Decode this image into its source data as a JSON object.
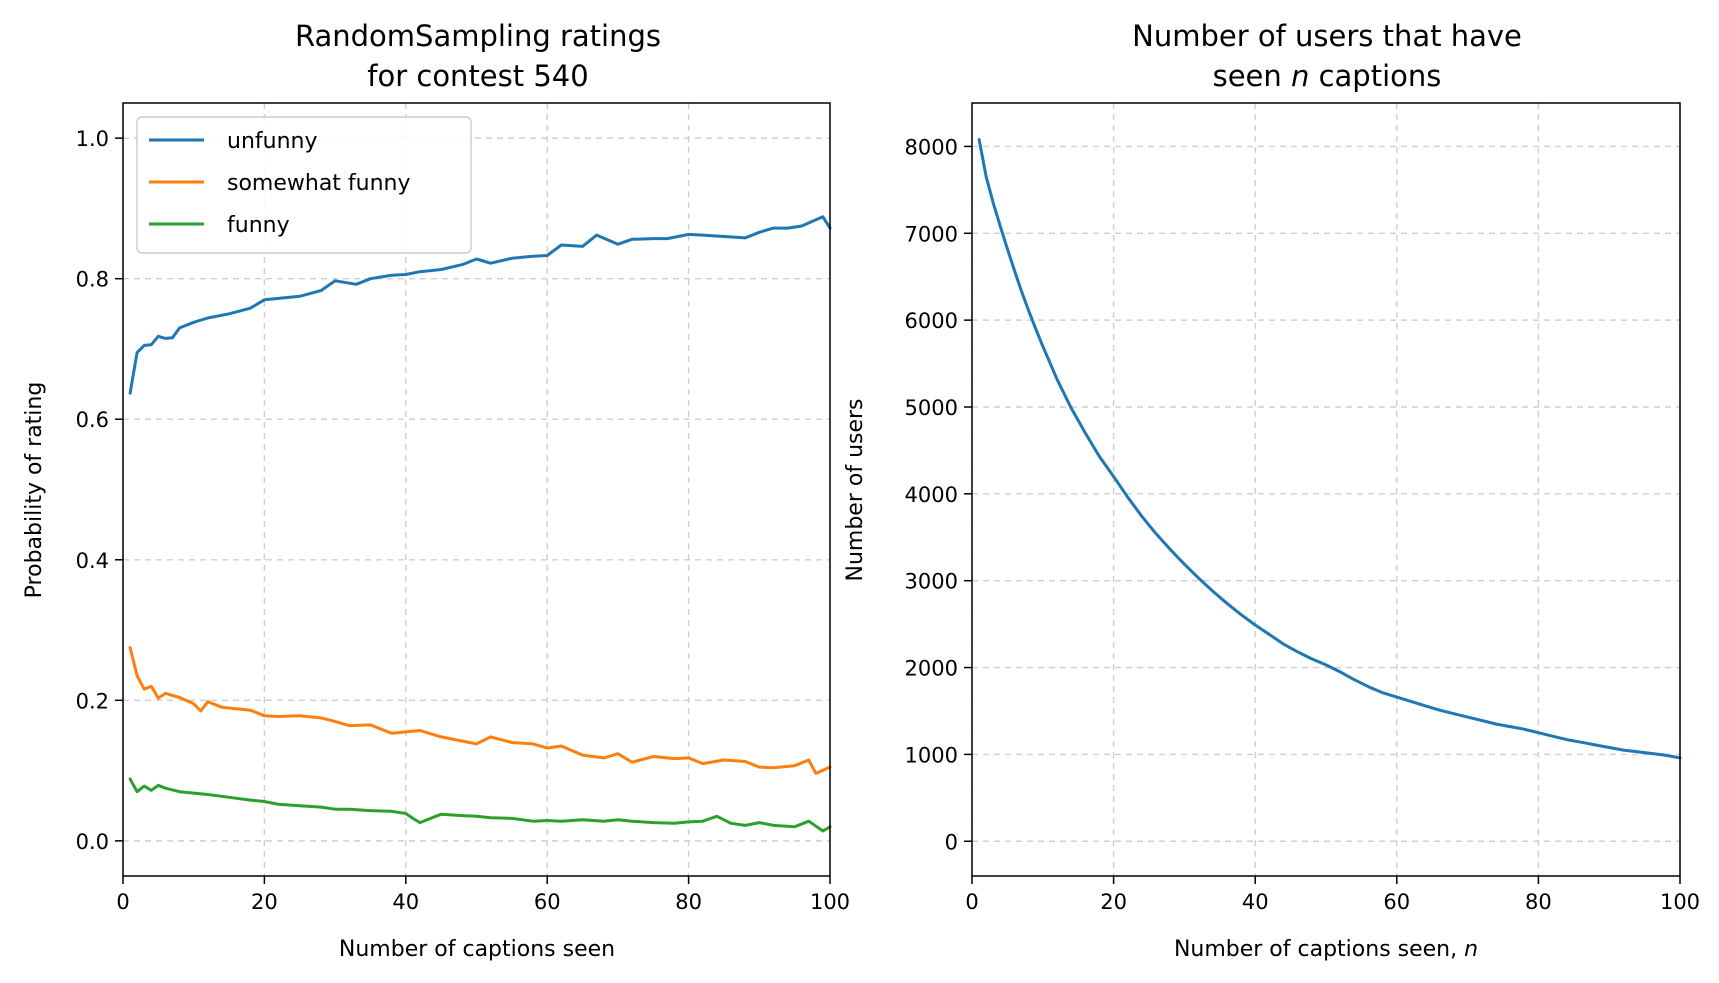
{
  "chart_data": [
    {
      "type": "line",
      "title": [
        "RandomSampling ratings",
        "for contest 540"
      ],
      "xlabel": "Number of captions seen",
      "ylabel": "Probability of rating",
      "xlim": [
        0,
        100
      ],
      "ylim": [
        -0.05,
        1.05
      ],
      "xticks": [
        "0",
        "20",
        "40",
        "60",
        "80",
        "100"
      ],
      "yticks": [
        "0.0",
        "0.2",
        "0.4",
        "0.6",
        "0.8",
        "1.0"
      ],
      "grid": true,
      "legend": "top-left",
      "series": [
        {
          "name": "unfunny",
          "color": "#1f77b4",
          "x": [
            1,
            2,
            3,
            4,
            5,
            6,
            7,
            8,
            10,
            12,
            15,
            18,
            20,
            22,
            25,
            28,
            30,
            33,
            35,
            38,
            40,
            42,
            45,
            48,
            50,
            52,
            55,
            58,
            60,
            62,
            65,
            67,
            70,
            72,
            75,
            77,
            80,
            82,
            85,
            88,
            90,
            92,
            94,
            96,
            98,
            99,
            100
          ],
          "values": [
            0.637,
            0.695,
            0.705,
            0.706,
            0.718,
            0.715,
            0.716,
            0.73,
            0.738,
            0.744,
            0.75,
            0.758,
            0.77,
            0.772,
            0.775,
            0.783,
            0.797,
            0.792,
            0.8,
            0.805,
            0.806,
            0.81,
            0.813,
            0.82,
            0.828,
            0.822,
            0.829,
            0.832,
            0.833,
            0.848,
            0.846,
            0.862,
            0.849,
            0.856,
            0.857,
            0.857,
            0.863,
            0.862,
            0.86,
            0.858,
            0.866,
            0.872,
            0.872,
            0.875,
            0.884,
            0.888,
            0.872
          ]
        },
        {
          "name": "somewhat funny",
          "color": "#ff7f0e",
          "x": [
            1,
            2,
            3,
            4,
            5,
            6,
            8,
            10,
            11,
            12,
            14,
            16,
            18,
            20,
            22,
            25,
            28,
            30,
            32,
            35,
            38,
            40,
            42,
            45,
            48,
            50,
            52,
            55,
            58,
            60,
            62,
            65,
            68,
            70,
            72,
            75,
            78,
            80,
            82,
            85,
            88,
            90,
            92,
            95,
            97,
            98,
            100
          ],
          "values": [
            0.275,
            0.235,
            0.216,
            0.22,
            0.203,
            0.21,
            0.204,
            0.195,
            0.185,
            0.198,
            0.19,
            0.188,
            0.186,
            0.178,
            0.177,
            0.178,
            0.175,
            0.17,
            0.164,
            0.165,
            0.153,
            0.155,
            0.157,
            0.148,
            0.142,
            0.138,
            0.148,
            0.14,
            0.138,
            0.132,
            0.135,
            0.122,
            0.118,
            0.124,
            0.112,
            0.12,
            0.117,
            0.118,
            0.11,
            0.115,
            0.113,
            0.105,
            0.104,
            0.107,
            0.115,
            0.096,
            0.105
          ]
        },
        {
          "name": "funny",
          "color": "#2ca02c",
          "x": [
            1,
            2,
            3,
            4,
            5,
            6,
            8,
            10,
            12,
            15,
            18,
            20,
            22,
            25,
            28,
            30,
            32,
            35,
            38,
            40,
            41,
            42,
            45,
            48,
            50,
            52,
            55,
            58,
            60,
            62,
            65,
            68,
            70,
            72,
            75,
            78,
            80,
            82,
            84,
            86,
            88,
            90,
            92,
            95,
            97,
            99,
            100
          ],
          "values": [
            0.088,
            0.07,
            0.078,
            0.072,
            0.079,
            0.075,
            0.07,
            0.068,
            0.066,
            0.062,
            0.058,
            0.056,
            0.052,
            0.05,
            0.048,
            0.045,
            0.045,
            0.043,
            0.042,
            0.039,
            0.032,
            0.026,
            0.038,
            0.036,
            0.035,
            0.033,
            0.032,
            0.028,
            0.029,
            0.028,
            0.03,
            0.028,
            0.03,
            0.028,
            0.026,
            0.025,
            0.027,
            0.028,
            0.035,
            0.025,
            0.022,
            0.026,
            0.022,
            0.02,
            0.028,
            0.014,
            0.02
          ]
        }
      ]
    },
    {
      "type": "line",
      "title": [
        "Number of users that have",
        "seen ",
        "n",
        " captions"
      ],
      "xlabel": [
        "Number of captions seen, ",
        "n"
      ],
      "ylabel": "Number of users",
      "xlim": [
        0,
        100
      ],
      "ylim": [
        -400,
        8500
      ],
      "xticks": [
        "0",
        "20",
        "40",
        "60",
        "80",
        "100"
      ],
      "yticks": [
        "0",
        "1000",
        "2000",
        "3000",
        "4000",
        "5000",
        "6000",
        "7000",
        "8000"
      ],
      "grid": true,
      "series": [
        {
          "color": "#1f77b4",
          "x": [
            1,
            2,
            3,
            4,
            5,
            6,
            7,
            8,
            9,
            10,
            12,
            14,
            16,
            18,
            20,
            22,
            24,
            26,
            28,
            30,
            32,
            34,
            36,
            38,
            40,
            42,
            44,
            46,
            48,
            50,
            52,
            54,
            56,
            58,
            60,
            62,
            64,
            66,
            68,
            70,
            72,
            74,
            76,
            78,
            80,
            82,
            84,
            86,
            88,
            90,
            92,
            94,
            96,
            98,
            100
          ],
          "values": [
            8080,
            7650,
            7350,
            7080,
            6820,
            6570,
            6330,
            6110,
            5900,
            5700,
            5320,
            4990,
            4700,
            4430,
            4200,
            3960,
            3740,
            3540,
            3360,
            3190,
            3030,
            2880,
            2740,
            2610,
            2490,
            2380,
            2270,
            2180,
            2100,
            2030,
            1950,
            1860,
            1780,
            1710,
            1660,
            1610,
            1560,
            1510,
            1470,
            1430,
            1390,
            1350,
            1320,
            1290,
            1250,
            1210,
            1170,
            1140,
            1110,
            1080,
            1050,
            1030,
            1010,
            990,
            960
          ]
        }
      ]
    }
  ]
}
